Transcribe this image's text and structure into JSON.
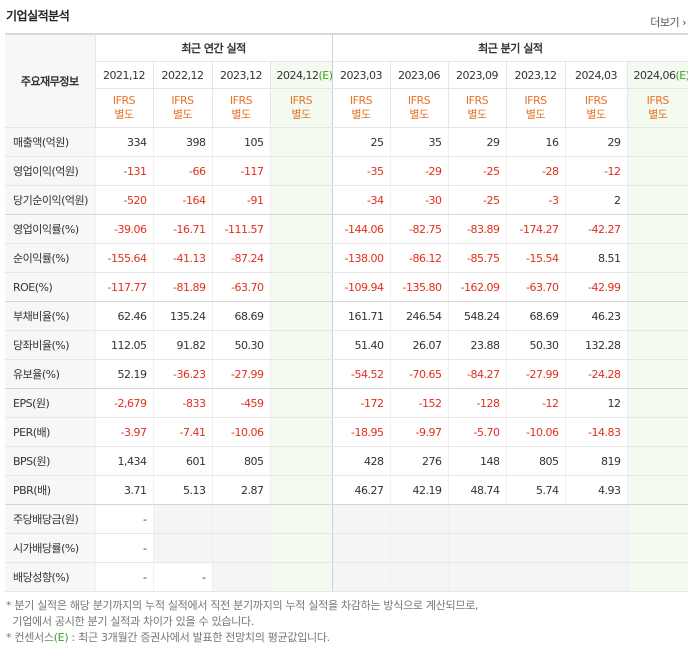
{
  "header": {
    "title": "기업실적분석",
    "more": "더보기"
  },
  "table": {
    "corner": "주요재무정보",
    "groups": [
      {
        "label": "최근 연간 실적",
        "span": 4
      },
      {
        "label": "최근 분기 실적",
        "span": 6
      }
    ],
    "columns": [
      {
        "period": "2021,12",
        "standard": "IFRS",
        "basis": "별도"
      },
      {
        "period": "2022,12",
        "standard": "IFRS",
        "basis": "별도"
      },
      {
        "period": "2023,12",
        "standard": "IFRS",
        "basis": "별도"
      },
      {
        "period": "2024,12",
        "mark": "(E)",
        "standard": "IFRS",
        "basis": "별도"
      },
      {
        "period": "2023,03",
        "standard": "IFRS",
        "basis": "별도"
      },
      {
        "period": "2023,06",
        "standard": "IFRS",
        "basis": "별도"
      },
      {
        "period": "2023,09",
        "standard": "IFRS",
        "basis": "별도"
      },
      {
        "period": "2023,12",
        "standard": "IFRS",
        "basis": "별도"
      },
      {
        "period": "2024,03",
        "standard": "IFRS",
        "basis": "별도"
      },
      {
        "period": "2024,06",
        "mark": "(E)",
        "standard": "IFRS",
        "basis": "별도"
      }
    ],
    "rows": [
      {
        "label": "매출액(억원)",
        "cells": [
          "334",
          "398",
          "105",
          null,
          "25",
          "35",
          "29",
          "16",
          "29",
          null
        ]
      },
      {
        "label": "영업이익(억원)",
        "cells": [
          "-131",
          "-66",
          "-117",
          null,
          "-35",
          "-29",
          "-25",
          "-28",
          "-12",
          null
        ]
      },
      {
        "label": "당기순이익(억원)",
        "cells": [
          "-520",
          "-164",
          "-91",
          null,
          "-34",
          "-30",
          "-25",
          "-3",
          "2",
          null
        ]
      },
      {
        "label": "영업이익률(%)",
        "cells": [
          "-39.06",
          "-16.71",
          "-111.57",
          null,
          "-144.06",
          "-82.75",
          "-83.89",
          "-174.27",
          "-42.27",
          null
        ]
      },
      {
        "label": "순이익률(%)",
        "cells": [
          "-155.64",
          "-41.13",
          "-87.24",
          null,
          "-138.00",
          "-86.12",
          "-85.75",
          "-15.54",
          "8.51",
          null
        ]
      },
      {
        "label": "ROE(%)",
        "cells": [
          "-117.77",
          "-81.89",
          "-63.70",
          null,
          "-109.94",
          "-135.80",
          "-162.09",
          "-63.70",
          "-42.99",
          null
        ]
      },
      {
        "label": "부채비율(%)",
        "cells": [
          "62.46",
          "135.24",
          "68.69",
          null,
          "161.71",
          "246.54",
          "548.24",
          "68.69",
          "46.23",
          null
        ]
      },
      {
        "label": "당좌비율(%)",
        "cells": [
          "112.05",
          "91.82",
          "50.30",
          null,
          "51.40",
          "26.07",
          "23.88",
          "50.30",
          "132.28",
          null
        ]
      },
      {
        "label": "유보율(%)",
        "cells": [
          "52.19",
          "-36.23",
          "-27.99",
          null,
          "-54.52",
          "-70.65",
          "-84.27",
          "-27.99",
          "-24.28",
          null
        ]
      },
      {
        "label": "EPS(원)",
        "cells": [
          "-2,679",
          "-833",
          "-459",
          null,
          "-172",
          "-152",
          "-128",
          "-12",
          "12",
          null
        ]
      },
      {
        "label": "PER(배)",
        "cells": [
          "-3.97",
          "-7.41",
          "-10.06",
          null,
          "-18.95",
          "-9.97",
          "-5.70",
          "-10.06",
          "-14.83",
          null
        ]
      },
      {
        "label": "BPS(원)",
        "cells": [
          "1,434",
          "601",
          "805",
          null,
          "428",
          "276",
          "148",
          "805",
          "819",
          null
        ]
      },
      {
        "label": "PBR(배)",
        "cells": [
          "3.71",
          "5.13",
          "2.87",
          null,
          "46.27",
          "42.19",
          "48.74",
          "5.74",
          "4.93",
          null
        ]
      },
      {
        "label": "주당배당금(원)",
        "cells": [
          "-",
          null,
          null,
          null,
          null,
          null,
          null,
          null,
          null,
          null
        ]
      },
      {
        "label": "시가배당률(%)",
        "cells": [
          "-",
          null,
          null,
          null,
          null,
          null,
          null,
          null,
          null,
          null
        ]
      },
      {
        "label": "배당성향(%)",
        "cells": [
          "-",
          "-",
          null,
          null,
          null,
          null,
          null,
          null,
          null,
          null
        ]
      }
    ]
  },
  "notes": [
    {
      "lines": [
        "* 분기 실적은 해당 분기까지의 누적 실적에서 직전 분기까지의 누적 실적을 차감하는 방식으로 계산되므로,",
        "  기업에서 공시한 분기 실적과 차이가 있을 수 있습니다."
      ]
    },
    {
      "before": "* 컨센서스",
      "mark": "(E)",
      "after": " : 최근 3개월간 증권사에서 발표한 전망치의 평균값입니다."
    }
  ]
}
